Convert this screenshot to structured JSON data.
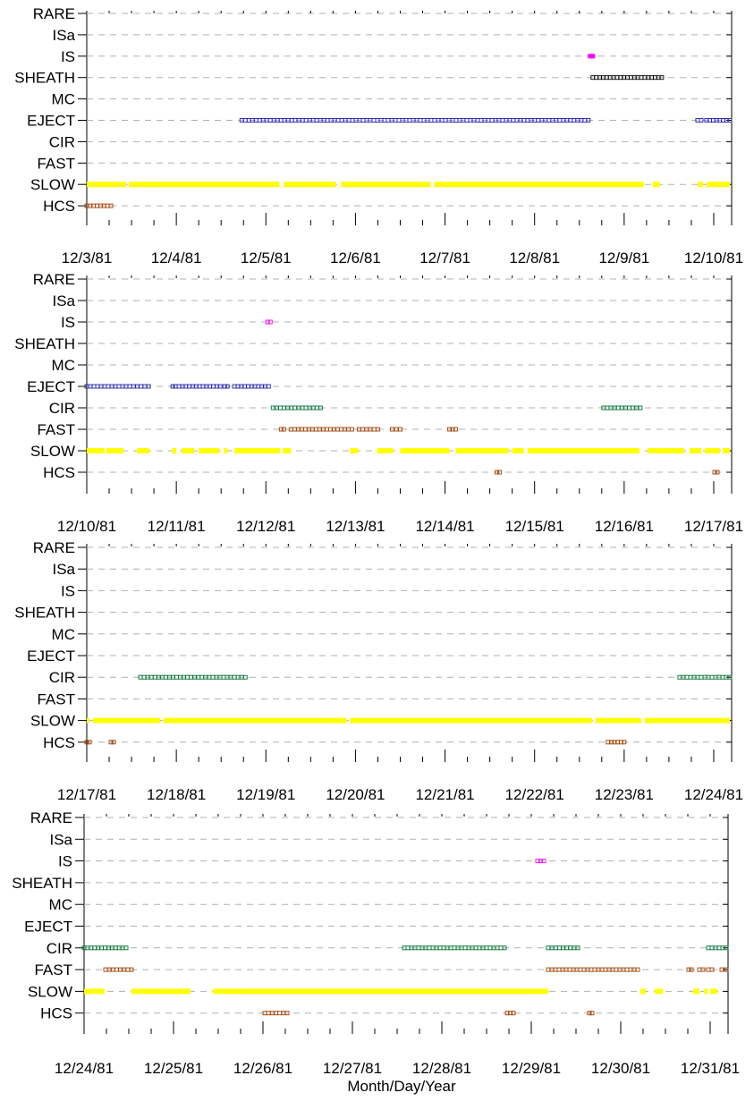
{
  "colors": {
    "RARE": "#000000",
    "ISa": "#ff00ff",
    "IS": "#ff00ff",
    "SHEATH": "#000000",
    "MC": "#000000",
    "EJECT": "#2222aa",
    "CIR": "#007030",
    "FAST": "#a04000",
    "SLOW": "#ffff00",
    "HCS": "#a04000"
  },
  "chart_data": {
    "type": "scatter",
    "xlabel": "Month/Day/Year",
    "categories": [
      "RARE",
      "ISa",
      "IS",
      "SHEATH",
      "MC",
      "EJECT",
      "CIR",
      "FAST",
      "SLOW",
      "HCS"
    ],
    "grid": "dashed horizontal at each category",
    "panels": [
      {
        "x_range": [
          "12/3/81",
          "12/10/81"
        ],
        "x_ticks": [
          "12/3/81",
          "12/4/81",
          "12/5/81",
          "12/6/81",
          "12/7/81",
          "12/8/81",
          "12/9/81",
          "12/10/81"
        ],
        "series": [
          {
            "category": "IS",
            "style": "filled",
            "intervals": [
              [
                5.62,
                5.65
              ]
            ]
          },
          {
            "category": "SHEATH",
            "style": "hollow",
            "intervals": [
              [
                5.65,
                6.23
              ],
              [
                6.27,
                6.42
              ]
            ]
          },
          {
            "category": "EJECT",
            "style": "hollow",
            "intervals": [
              [
                1.73,
                5.6
              ],
              [
                6.82,
                6.86
              ],
              [
                6.92,
                7.18
              ]
            ]
          },
          {
            "category": "SLOW",
            "style": "bar",
            "intervals": [
              [
                0.0,
                0.44
              ],
              [
                0.47,
                2.15
              ],
              [
                2.2,
                2.78
              ],
              [
                2.84,
                3.84
              ],
              [
                3.88,
                6.22
              ],
              [
                6.32,
                6.4
              ],
              [
                6.82,
                6.88
              ],
              [
                6.92,
                7.18
              ]
            ]
          },
          {
            "category": "HCS",
            "style": "hollow",
            "intervals": [
              [
                0.0,
                0.27
              ]
            ]
          }
        ]
      },
      {
        "x_range": [
          "12/10/81",
          "12/17/81"
        ],
        "x_ticks": [
          "12/10/81",
          "12/11/81",
          "12/12/81",
          "12/13/81",
          "12/14/81",
          "12/15/81",
          "12/16/81",
          "12/17/81"
        ],
        "series": [
          {
            "category": "IS",
            "style": "hollow",
            "intervals": [
              [
                2.02,
                2.05
              ]
            ]
          },
          {
            "category": "EJECT",
            "style": "hollow",
            "intervals": [
              [
                0.0,
                0.44
              ],
              [
                0.48,
                0.69
              ],
              [
                0.96,
                0.99
              ],
              [
                1.03,
                1.49
              ],
              [
                1.54,
                1.57
              ],
              [
                1.65,
                2.03
              ]
            ]
          },
          {
            "category": "CIR",
            "style": "hollow",
            "intervals": [
              [
                2.08,
                2.61
              ],
              [
                5.77,
                6.18
              ]
            ]
          },
          {
            "category": "FAST",
            "style": "hollow",
            "intervals": [
              [
                2.17,
                2.2
              ],
              [
                2.28,
                2.96
              ],
              [
                3.04,
                3.25
              ],
              [
                3.41,
                3.5
              ],
              [
                4.05,
                4.12
              ]
            ]
          },
          {
            "category": "SLOW",
            "style": "bar",
            "intervals": [
              [
                0.0,
                0.2
              ],
              [
                0.22,
                0.41
              ],
              [
                0.56,
                0.7
              ],
              [
                0.95,
                1.0
              ],
              [
                1.06,
                1.2
              ],
              [
                1.25,
                1.48
              ],
              [
                1.53,
                1.57
              ],
              [
                1.65,
                2.16
              ],
              [
                2.19,
                2.28
              ],
              [
                2.94,
                3.03
              ],
              [
                3.24,
                3.42
              ],
              [
                3.5,
                4.05
              ],
              [
                4.12,
                4.71
              ],
              [
                4.75,
                4.88
              ],
              [
                4.92,
                6.17
              ],
              [
                6.26,
                6.67
              ],
              [
                6.73,
                6.86
              ],
              [
                6.9,
                7.07
              ],
              [
                7.1,
                7.18
              ]
            ]
          },
          {
            "category": "HCS",
            "style": "hollow",
            "intervals": [
              [
                4.58,
                4.61
              ],
              [
                7.01,
                7.04
              ]
            ]
          }
        ]
      },
      {
        "x_range": [
          "12/17/81",
          "12/24/81"
        ],
        "x_ticks": [
          "12/17/81",
          "12/18/81",
          "12/19/81",
          "12/20/81",
          "12/21/81",
          "12/22/81",
          "12/23/81",
          "12/24/81"
        ],
        "series": [
          {
            "category": "CIR",
            "style": "hollow",
            "intervals": [
              [
                0.6,
                1.77
              ],
              [
                6.62,
                7.18
              ]
            ]
          },
          {
            "category": "SLOW",
            "style": "bar",
            "intervals": [
              [
                0.0,
                0.03
              ],
              [
                0.07,
                0.82
              ],
              [
                0.86,
                2.9
              ],
              [
                2.94,
                5.64
              ],
              [
                5.68,
                6.19
              ],
              [
                6.23,
                7.18
              ]
            ]
          },
          {
            "category": "HCS",
            "style": "hollow",
            "intervals": [
              [
                0.0,
                0.03
              ],
              [
                0.27,
                0.3
              ],
              [
                5.82,
                6.0
              ]
            ]
          }
        ]
      },
      {
        "x_range": [
          "12/24/81",
          "12/31/81"
        ],
        "x_ticks": [
          "12/24/81",
          "12/25/81",
          "12/26/81",
          "12/27/81",
          "12/28/81",
          "12/29/81",
          "12/30/81",
          "12/31/81"
        ],
        "series": [
          {
            "category": "IS",
            "style": "hollow",
            "intervals": [
              [
                5.07,
                5.14
              ]
            ]
          },
          {
            "category": "CIR",
            "style": "hollow",
            "intervals": [
              [
                0.0,
                0.47
              ],
              [
                3.58,
                4.7
              ],
              [
                5.19,
                5.52
              ],
              [
                6.98,
                7.18
              ]
            ]
          },
          {
            "category": "FAST",
            "style": "hollow",
            "intervals": [
              [
                0.24,
                0.53
              ],
              [
                5.19,
                6.19
              ],
              [
                6.76,
                6.79
              ],
              [
                6.88,
                6.92
              ],
              [
                6.98,
                7.02
              ],
              [
                7.13,
                7.18
              ]
            ]
          },
          {
            "category": "SLOW",
            "style": "bar",
            "intervals": [
              [
                0.0,
                0.23
              ],
              [
                0.53,
                1.19
              ],
              [
                1.44,
                5.19
              ],
              [
                6.22,
                6.28
              ],
              [
                6.38,
                6.47
              ],
              [
                6.81,
                6.88
              ],
              [
                6.93,
                6.97
              ],
              [
                7.0,
                7.08
              ]
            ]
          },
          {
            "category": "HCS",
            "style": "hollow",
            "intervals": [
              [
                2.02,
                2.27
              ],
              [
                4.73,
                4.8
              ],
              [
                5.65,
                5.68
              ]
            ]
          }
        ]
      }
    ]
  }
}
